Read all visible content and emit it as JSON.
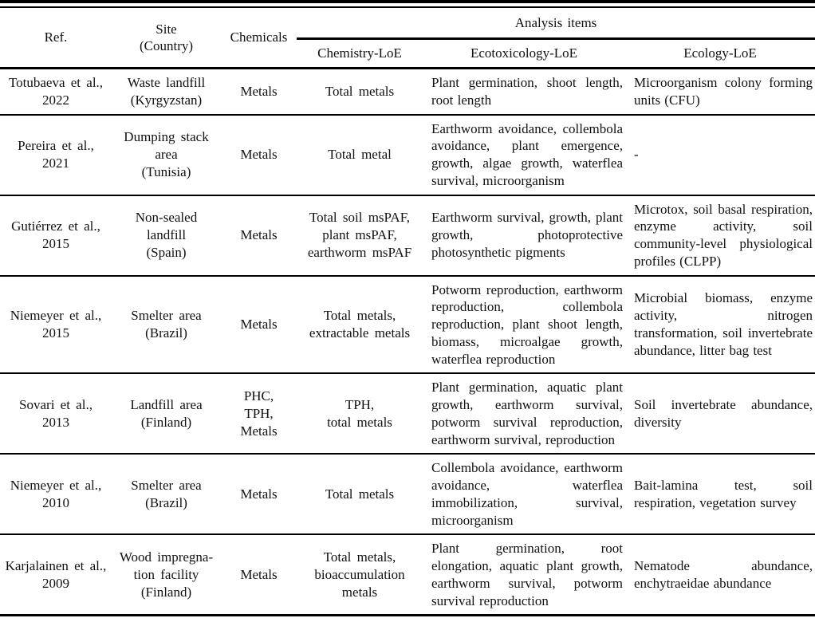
{
  "colors": {
    "background": "#ffffff",
    "text": "#111111",
    "rule": "#000000"
  },
  "table": {
    "headers": {
      "ref": "Ref.",
      "site": [
        "Site",
        "(Country)"
      ],
      "chemicals": "Chemicals",
      "analysis_items": "Analysis items",
      "sub": {
        "chemistry": "Chemistry-LoE",
        "ecotoxicology": "Ecotoxicology-LoE",
        "ecology": "Ecology-LoE"
      }
    },
    "rows": [
      {
        "ref": [
          "Totubaeva et al.,",
          "2022"
        ],
        "site": [
          "Waste landfill",
          "(Kyrgyzstan)"
        ],
        "chemicals": [
          "Metals"
        ],
        "chemistry": [
          "Total metals"
        ],
        "ecotoxicology": "Plant germination, shoot length, root length",
        "ecology": "Microorganism colony forming units (CFU)"
      },
      {
        "ref": [
          "Pereira et al.,",
          "2021"
        ],
        "site": [
          "Dumping stack",
          "area",
          "(Tunisia)"
        ],
        "chemicals": [
          "Metals"
        ],
        "chemistry": [
          "Total metal"
        ],
        "ecotoxicology": "Earthworm avoidance, collembola avoidance, plant emergence, growth, algae growth, waterflea survival, microorganism",
        "ecology": "-"
      },
      {
        "ref": [
          "Gutiérrez et al.,",
          "2015"
        ],
        "site": [
          "Non-sealed",
          "landfill",
          "(Spain)"
        ],
        "chemicals": [
          "Metals"
        ],
        "chemistry": [
          "Total soil msPAF,",
          "plant msPAF,",
          "earthworm msPAF"
        ],
        "ecotoxicology": "Earthworm survival, growth, plant growth, photoprotective photosynthetic pigments",
        "ecology": "Microtox, soil basal respiration, enzyme activity, soil community-level physiological profiles (CLPP)"
      },
      {
        "ref": [
          "Niemeyer et al.,",
          "2015"
        ],
        "site": [
          "Smelter area",
          "(Brazil)"
        ],
        "chemicals": [
          "Metals"
        ],
        "chemistry": [
          "Total metals,",
          "extractable metals"
        ],
        "ecotoxicology": "Potworm reproduction, earthworm reproduction, collembola reproduction, plant shoot length, biomass, microalgae growth, waterflea reproduction",
        "ecology": "Microbial biomass, enzyme activity, nitrogen transformation, soil invertebrate abundance, litter bag test"
      },
      {
        "ref": [
          "Sovari et al.,",
          "2013"
        ],
        "site": [
          "Landfill area",
          "(Finland)"
        ],
        "chemicals": [
          "PHC,",
          "TPH,",
          "Metals"
        ],
        "chemistry": [
          "TPH,",
          "total metals"
        ],
        "ecotoxicology": "Plant germination, aquatic plant growth, earthworm survival, potworm survival reproduction, earthworm survival, reproduction",
        "ecology": "Soil invertebrate abundance, diversity"
      },
      {
        "ref": [
          "Niemeyer et al.,",
          "2010"
        ],
        "site": [
          "Smelter area",
          "(Brazil)"
        ],
        "chemicals": [
          "Metals"
        ],
        "chemistry": [
          "Total metals"
        ],
        "ecotoxicology": "Collembola avoidance, earthworm avoidance, waterflea immobilization, survival, microorganism",
        "ecology": "Bait-lamina test, soil respiration, vegetation survey"
      },
      {
        "ref": [
          "Karjalainen et al.,",
          "2009"
        ],
        "site": [
          "Wood impregna-",
          "tion facility",
          "(Finland)"
        ],
        "chemicals": [
          "Metals"
        ],
        "chemistry": [
          "Total metals,",
          "bioaccumulation",
          "metals"
        ],
        "ecotoxicology": "Plant germination, root elongation, aquatic plant growth, earthworm survival, potworm survival reproduction",
        "ecology": "Nematode abundance, enchytraeidae abundance"
      }
    ]
  }
}
